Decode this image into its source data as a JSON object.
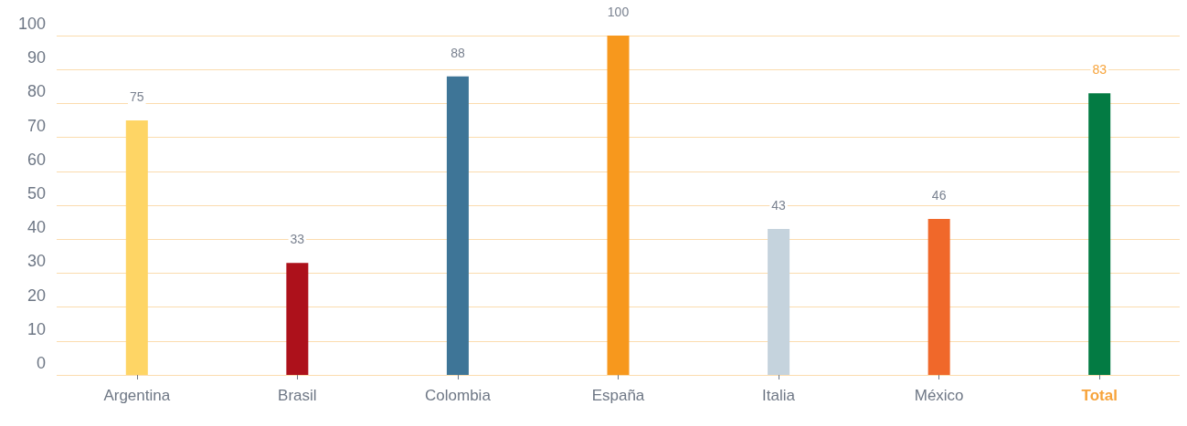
{
  "chart_data": {
    "type": "bar",
    "categories": [
      "Argentina",
      "Brasil",
      "Colombia",
      "España",
      "Italia",
      "México",
      "Total"
    ],
    "values": [
      75,
      33,
      88,
      100,
      43,
      46,
      83
    ],
    "colors": [
      "#fed565",
      "#ad111b",
      "#3e7597",
      "#f7981d",
      "#c5d3dd",
      "#f0682a",
      "#037b43"
    ],
    "ylim": [
      0,
      100
    ],
    "yticks": [
      0,
      10,
      20,
      30,
      40,
      50,
      60,
      70,
      80,
      90,
      100
    ],
    "grid": "y",
    "data_labels": true
  }
}
